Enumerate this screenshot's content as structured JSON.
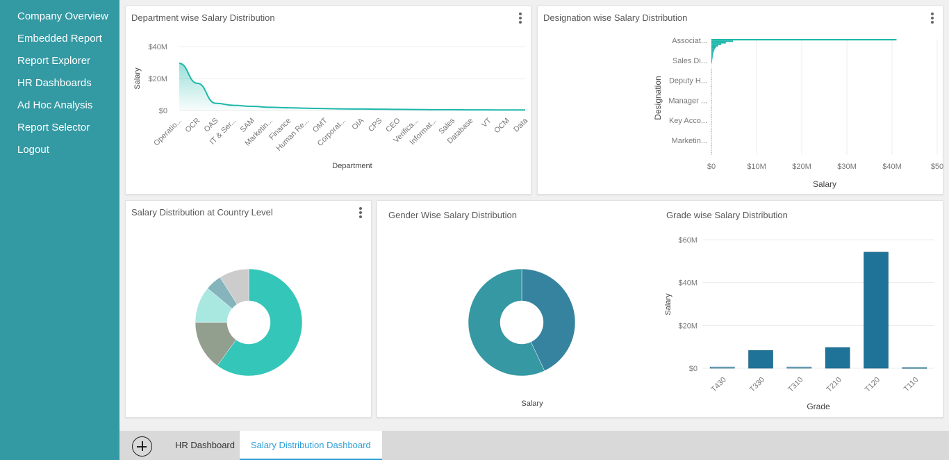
{
  "sidebar": {
    "items": [
      {
        "label": "Company Overview"
      },
      {
        "label": "Embedded Report"
      },
      {
        "label": "Report Explorer"
      },
      {
        "label": "HR Dashboards"
      },
      {
        "label": "Ad Hoc Analysis"
      },
      {
        "label": "Report Selector"
      },
      {
        "label": "Logout"
      }
    ]
  },
  "widgets": {
    "dept": {
      "title": "Department wise Salary Distribution"
    },
    "desig": {
      "title": "Designation wise Salary Distribution"
    },
    "country": {
      "title": "Salary Distribution at Country Level"
    },
    "gender": {
      "title": "Gender Wise Salary Distribution"
    },
    "grade": {
      "title": "Grade wise Salary Distribution"
    }
  },
  "tabs": {
    "add_icon": "plus-circle-icon",
    "items": [
      {
        "label": "HR Dashboard"
      },
      {
        "label": "Salary Distribution Dashboard"
      }
    ],
    "active_color": "#2d9ed6"
  },
  "colors": {
    "sidebar": "#3399a3",
    "teal": "#1fb8aa",
    "bar_blue": "#1f7399"
  },
  "chart_data": [
    {
      "id": "dept",
      "type": "area",
      "title": "Department wise Salary Distribution",
      "xlabel": "Department",
      "ylabel": "Salary",
      "yticks": [
        "$0",
        "$20M",
        "$40M"
      ],
      "ylim": [
        0,
        40
      ],
      "categories": [
        "Operatio...",
        "OCR",
        "OAS",
        "IT & Ser...",
        "SAM",
        "Marketin...",
        "Finance",
        "Human Re...",
        "OMT",
        "Corporat...",
        "OIA",
        "CPS",
        "CEO",
        "Verifica...",
        "Informat...",
        "Sales",
        "Database",
        "VT",
        "OCM",
        "Data"
      ],
      "values": [
        29.5,
        17,
        4.5,
        3.2,
        2.6,
        2.0,
        1.7,
        1.4,
        1.2,
        1.0,
        0.9,
        0.8,
        0.7,
        0.6,
        0.5,
        0.5,
        0.4,
        0.4,
        0.3,
        0.3
      ]
    },
    {
      "id": "desig",
      "type": "bar",
      "orientation": "horizontal",
      "title": "Designation wise Salary Distribution",
      "xlabel": "Salary",
      "ylabel": "Designation",
      "xticks": [
        "$0",
        "$10M",
        "$20M",
        "$30M",
        "$40M",
        "$50"
      ],
      "xlim": [
        0,
        50
      ],
      "ytick_labels": [
        "Associat...",
        "Sales Di...",
        "Deputy H...",
        "Manager ...",
        "Key Acco...",
        "Marketin..."
      ],
      "values": [
        41,
        4.8,
        3.2,
        2.2,
        1.5,
        1.0,
        0.8,
        0.6,
        0.5,
        0.4,
        0.35,
        0.3,
        0.25,
        0.2,
        0.15,
        0.1
      ]
    },
    {
      "id": "country",
      "type": "pie",
      "title": "Salary Distribution at Country Level",
      "slices": [
        {
          "value": 60,
          "color": "#34c6b8"
        },
        {
          "value": 15,
          "color": "#929e8e"
        },
        {
          "value": 11,
          "color": "#a9e8e0"
        },
        {
          "value": 5,
          "color": "#85b4bd"
        },
        {
          "value": 9,
          "color": "#cccccc"
        }
      ]
    },
    {
      "id": "gender",
      "type": "pie",
      "title": "Gender Wise Salary Distribution",
      "xlabel": "Salary",
      "slices": [
        {
          "value": 43,
          "color": "#35839f"
        },
        {
          "value": 57,
          "color": "#3598a3"
        }
      ]
    },
    {
      "id": "grade",
      "type": "bar",
      "title": "Grade wise Salary Distribution",
      "xlabel": "Grade",
      "ylabel": "Salary",
      "yticks": [
        "$0",
        "$20M",
        "$40M",
        "$60M"
      ],
      "ylim": [
        0,
        60
      ],
      "categories": [
        "T430",
        "T330",
        "T310",
        "T210",
        "T120",
        "T110"
      ],
      "values": [
        0.6,
        8.3,
        0.6,
        9.7,
        54.2,
        0.4
      ]
    }
  ]
}
